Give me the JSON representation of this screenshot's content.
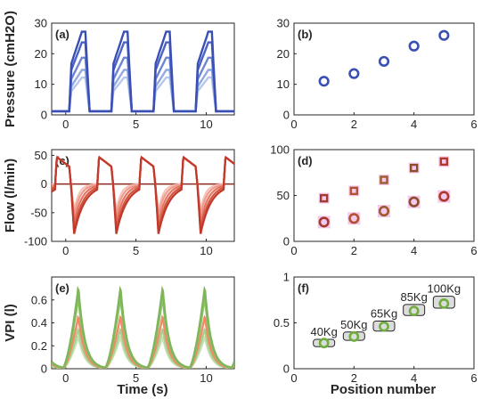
{
  "figure": {
    "xlabel_left": "Time (s)",
    "xlabel_right": "Position number"
  },
  "chart_data": [
    {
      "id": "a",
      "panel_label": "(a)",
      "type": "line",
      "ylabel": "Pressure (cmH2O)",
      "xlim": [
        -1,
        12
      ],
      "ylim": [
        0,
        30
      ],
      "xticks": [
        "0",
        "5",
        "10"
      ],
      "yticks": [
        "0",
        "10",
        "20",
        "30"
      ],
      "x_tick_values": [
        0,
        5,
        10
      ],
      "y_tick_values": [
        0,
        10,
        20,
        30
      ],
      "period_s": 3,
      "first_peak_s": 1.35,
      "series_peaks": [
        26,
        22.5,
        17.5,
        13.5,
        11
      ],
      "colors": [
        "#3a4fb3",
        "#4a62c4",
        "#6c86d4",
        "#93a9e0",
        "#b7c7ec"
      ]
    },
    {
      "id": "b",
      "panel_label": "(b)",
      "type": "scatter",
      "xlim": [
        0,
        6
      ],
      "ylim": [
        0,
        30
      ],
      "xticks": [
        "0",
        "2",
        "4",
        "6"
      ],
      "yticks": [
        "0",
        "10",
        "20",
        "30"
      ],
      "x_tick_values": [
        0,
        2,
        4,
        6
      ],
      "y_tick_values": [
        0,
        10,
        20,
        30
      ],
      "x": [
        1,
        2,
        3,
        4,
        5
      ],
      "y": [
        11,
        13.5,
        17.5,
        22.5,
        26
      ],
      "color": "#3a4fb3"
    },
    {
      "id": "c",
      "panel_label": "(c)",
      "type": "line",
      "ylabel": "Flow (l/min)",
      "xlim": [
        -1,
        12
      ],
      "ylim": [
        -100,
        60
      ],
      "xticks": [
        "0",
        "5",
        "10"
      ],
      "yticks": [
        "-100",
        "-50",
        "0",
        "50"
      ],
      "x_tick_values": [
        0,
        5,
        10
      ],
      "y_tick_values": [
        -100,
        -50,
        0,
        50
      ],
      "period_s": 3,
      "inspiratory_peaks": [
        47,
        47,
        47,
        47,
        47
      ],
      "expiratory_peaks": [
        -87,
        -80,
        -68,
        -55,
        -47
      ],
      "colors": [
        "#c0392b",
        "#d3533f",
        "#e37563",
        "#ee9b8c",
        "#f6c1b8"
      ]
    },
    {
      "id": "d",
      "panel_label": "(d)",
      "type": "scatter",
      "xlim": [
        0,
        6
      ],
      "ylim": [
        0,
        100
      ],
      "xticks": [
        "0",
        "2",
        "4",
        "6"
      ],
      "yticks": [
        "0",
        "50",
        "100"
      ],
      "x_tick_values": [
        0,
        2,
        4,
        6
      ],
      "y_tick_values": [
        0,
        50,
        100
      ],
      "series": [
        {
          "marker": "square",
          "x": [
            1,
            2,
            3,
            4,
            5
          ],
          "y": [
            47,
            55,
            67,
            80,
            87
          ]
        },
        {
          "marker": "circle",
          "x": [
            1,
            2,
            3,
            4,
            5
          ],
          "y": [
            21,
            25,
            33,
            43,
            49
          ]
        }
      ],
      "colors": [
        "#a33a2e",
        "#b5512f",
        "#9e5b2c",
        "#8e4c2a",
        "#b03a2a"
      ],
      "shade_color": "#f4c9ef"
    },
    {
      "id": "e",
      "panel_label": "(e)",
      "type": "line",
      "ylabel": "VPI (l)",
      "xlim": [
        -1,
        12
      ],
      "ylim": [
        0,
        0.8
      ],
      "xticks": [
        "0",
        "5",
        "10"
      ],
      "yticks": [
        "0",
        "0.2",
        "0.4",
        "0.6"
      ],
      "x_tick_values": [
        0,
        5,
        10
      ],
      "y_tick_values": [
        0,
        0.2,
        0.4,
        0.6
      ],
      "period_s": 3,
      "series_peaks": [
        0.71,
        0.63,
        0.46,
        0.35,
        0.28
      ],
      "colors": [
        "#7fb65a",
        "#8dc16a",
        "#f08a68",
        "#a8d08e",
        "#c7e1b5"
      ]
    },
    {
      "id": "f",
      "panel_label": "(f)",
      "type": "scatter",
      "xlim": [
        0,
        6
      ],
      "ylim": [
        0,
        1
      ],
      "xticks": [
        "0",
        "2",
        "4",
        "6"
      ],
      "yticks": [
        "0",
        "0.5",
        "1"
      ],
      "x_tick_values": [
        0,
        2,
        4,
        6
      ],
      "y_tick_values": [
        0,
        0.5,
        1
      ],
      "x": [
        1,
        2,
        3,
        4,
        5
      ],
      "y": [
        0.28,
        0.35,
        0.46,
        0.63,
        0.71
      ],
      "range_low": [
        0.24,
        0.31,
        0.41,
        0.58,
        0.66
      ],
      "range_high": [
        0.32,
        0.4,
        0.52,
        0.7,
        0.79
      ],
      "annotations": [
        "40Kg",
        "50Kg",
        "65Kg",
        "85Kg",
        "100Kg"
      ],
      "color": "#6fae3c",
      "box_color": "#dcdcdc"
    }
  ]
}
